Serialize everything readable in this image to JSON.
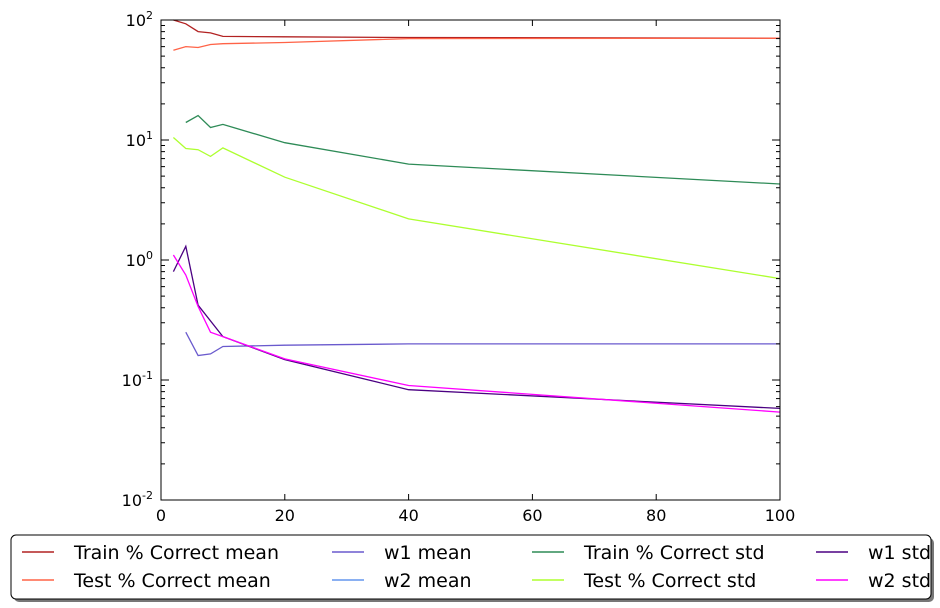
{
  "chart_data": {
    "type": "line",
    "title": "",
    "xlabel": "",
    "ylabel": "",
    "xlim": [
      0,
      100
    ],
    "ylim": [
      0.01,
      100
    ],
    "yscale": "log",
    "grid": false,
    "legend_placement": "below",
    "x_ticks": [
      "0",
      "20",
      "40",
      "60",
      "80",
      "100"
    ],
    "y_ticks": [
      {
        "value": 0.01,
        "base": "10",
        "exp": "-2"
      },
      {
        "value": 0.1,
        "base": "10",
        "exp": "-1"
      },
      {
        "value": 1,
        "base": "10",
        "exp": "0"
      },
      {
        "value": 10,
        "base": "10",
        "exp": "1"
      },
      {
        "value": 100,
        "base": "10",
        "exp": "2"
      }
    ],
    "series": [
      {
        "name": "Train % Correct mean",
        "color": "#b22222",
        "points": [
          [
            2,
            100
          ],
          [
            4,
            93
          ],
          [
            6,
            80
          ],
          [
            8,
            78
          ],
          [
            10,
            73
          ],
          [
            20,
            72.5
          ],
          [
            40,
            71.5
          ],
          [
            100,
            70.5
          ]
        ]
      },
      {
        "name": "Test % Correct mean",
        "color": "#ff6347",
        "points": [
          [
            2,
            56
          ],
          [
            4,
            60
          ],
          [
            6,
            59
          ],
          [
            8,
            62.5
          ],
          [
            10,
            63.5
          ],
          [
            20,
            65
          ],
          [
            40,
            70
          ],
          [
            100,
            70.5
          ]
        ]
      },
      {
        "name": "w1 mean",
        "color": "#6a5acd",
        "points": [
          [
            4,
            0.25
          ],
          [
            6,
            0.16
          ],
          [
            8,
            0.165
          ],
          [
            10,
            0.19
          ],
          [
            20,
            0.195
          ],
          [
            40,
            0.2
          ],
          [
            100,
            0.2
          ]
        ]
      },
      {
        "name": "w2 mean",
        "color": "#6495ed",
        "points": []
      },
      {
        "name": "Train % Correct std",
        "color": "#2e8b57",
        "points": [
          [
            4,
            14
          ],
          [
            6,
            16
          ],
          [
            8,
            12.7
          ],
          [
            10,
            13.5
          ],
          [
            20,
            9.5
          ],
          [
            40,
            6.3
          ],
          [
            100,
            4.3
          ]
        ]
      },
      {
        "name": "Test % Correct std",
        "color": "#adff2f",
        "points": [
          [
            2,
            10.5
          ],
          [
            4,
            8.5
          ],
          [
            6,
            8.3
          ],
          [
            8,
            7.3
          ],
          [
            10,
            8.6
          ],
          [
            20,
            4.9
          ],
          [
            40,
            2.2
          ],
          [
            100,
            0.7
          ]
        ]
      },
      {
        "name": "w1 std",
        "color": "#4b0082",
        "points": [
          [
            2,
            0.8
          ],
          [
            4,
            1.3
          ],
          [
            6,
            0.42
          ],
          [
            10,
            0.23
          ],
          [
            20,
            0.148
          ],
          [
            40,
            0.083
          ],
          [
            100,
            0.058
          ]
        ]
      },
      {
        "name": "w2 std",
        "color": "#ff00ff",
        "points": [
          [
            2,
            1.1
          ],
          [
            4,
            0.75
          ],
          [
            6,
            0.41
          ],
          [
            8,
            0.25
          ],
          [
            10,
            0.23
          ],
          [
            20,
            0.15
          ],
          [
            40,
            0.09
          ],
          [
            100,
            0.054
          ]
        ]
      }
    ]
  }
}
